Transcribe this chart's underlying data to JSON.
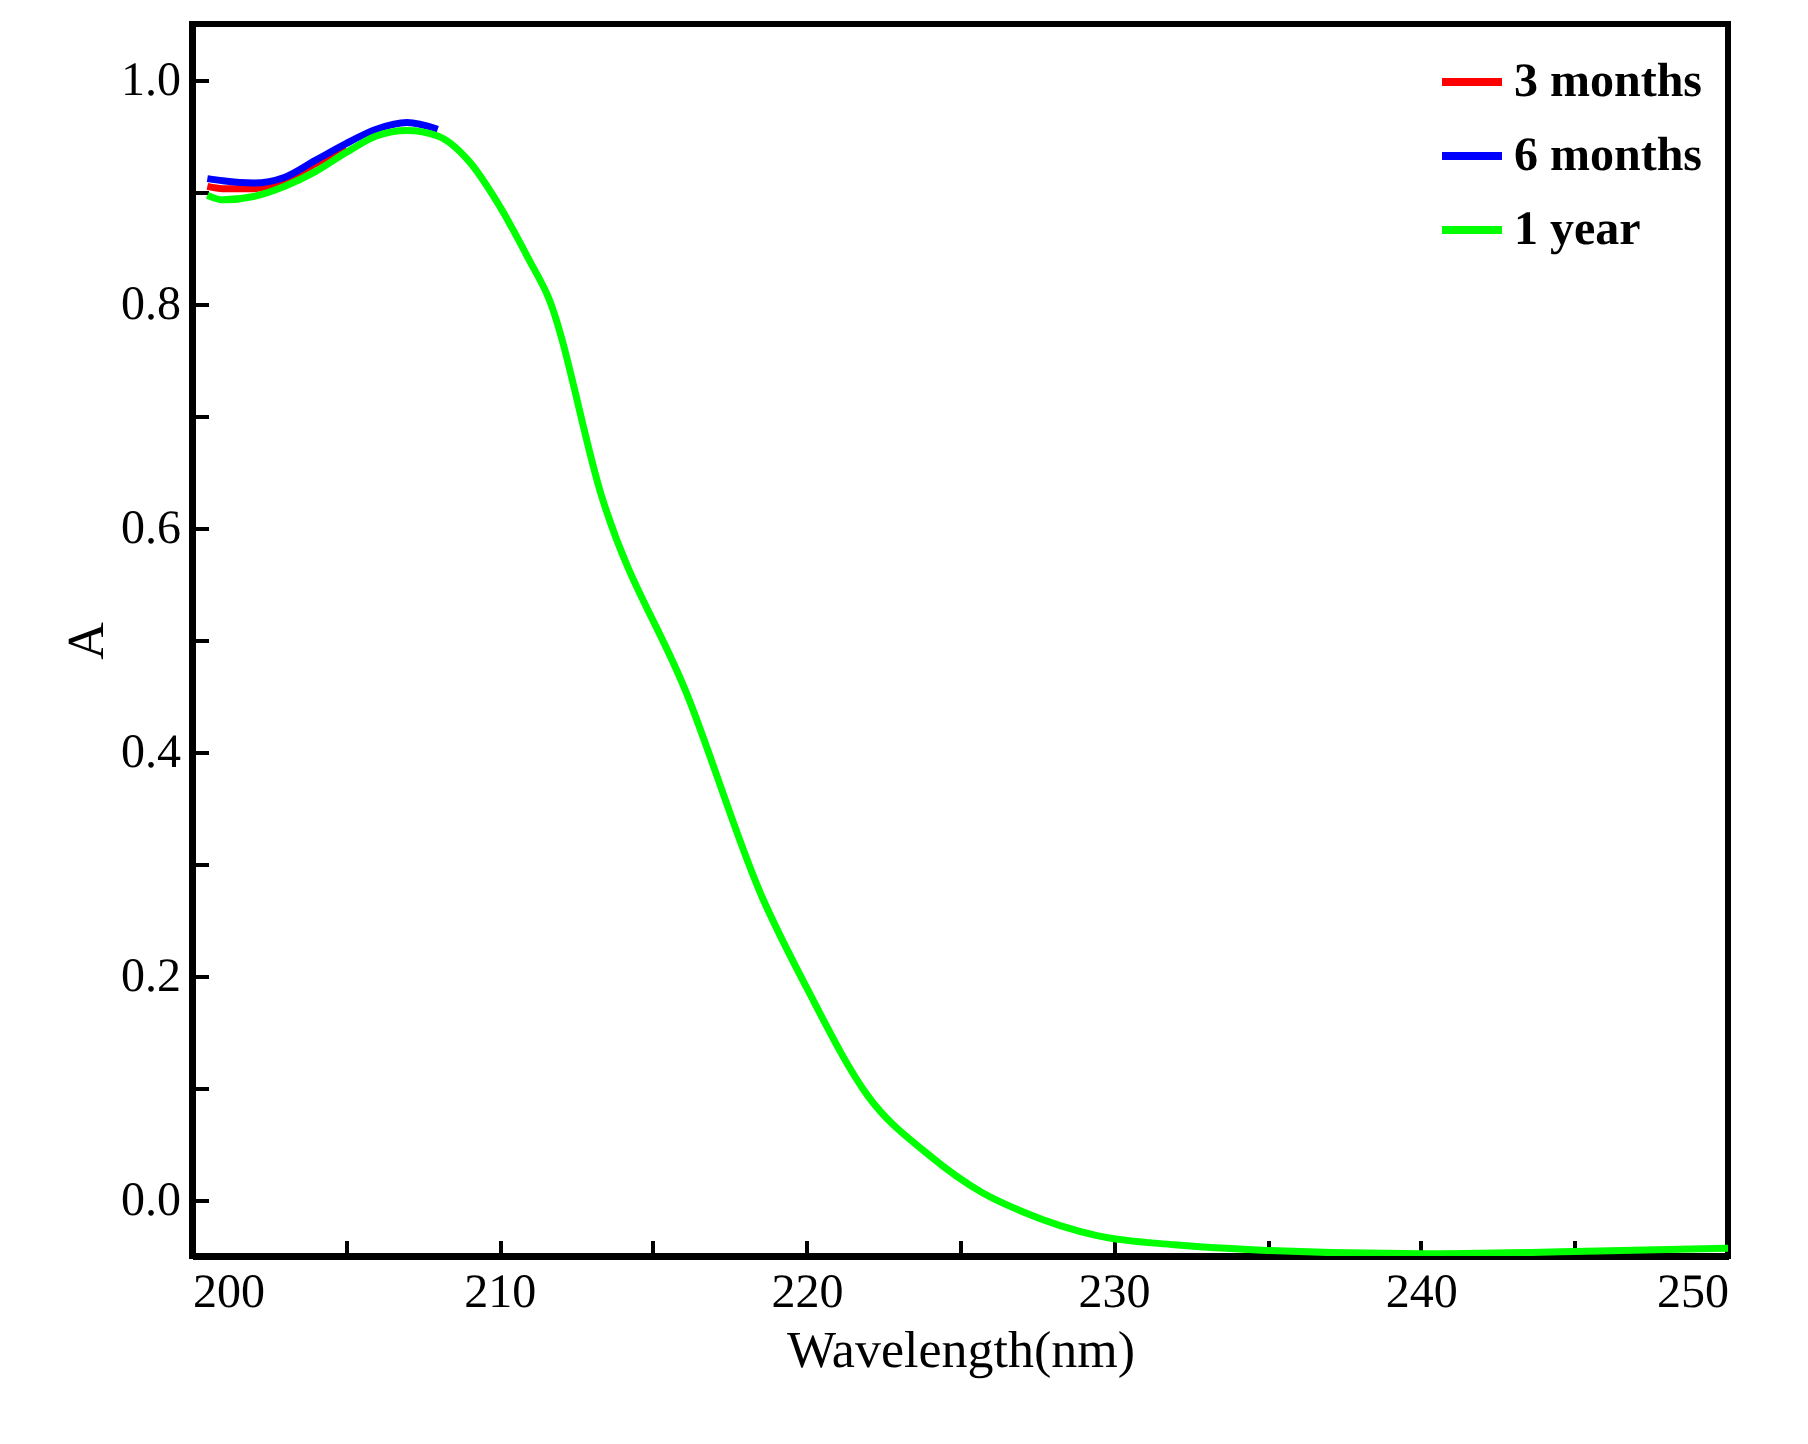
{
  "chart_data": {
    "type": "line",
    "xlabel": "Wavelength(nm)",
    "ylabel": "A",
    "x": [
      200.5,
      201,
      202,
      203,
      204,
      205,
      206,
      207,
      208,
      209,
      210,
      211,
      211.6,
      213.35,
      216.15,
      218.55,
      220,
      222,
      224,
      225.7,
      227,
      229.5,
      232,
      235,
      240,
      245,
      250
    ],
    "series": [
      {
        "name": "3 months",
        "color": "#ff0000",
        "values": [
          0.905,
          0.903,
          0.903,
          0.91,
          0.925,
          0.94,
          null,
          null,
          null,
          null,
          null,
          null,
          null,
          null,
          null,
          null,
          null,
          null,
          null,
          null,
          null,
          null,
          null,
          null,
          null,
          null,
          null
        ]
      },
      {
        "name": "6 months",
        "color": "#0000ff",
        "values": [
          0.912,
          0.91,
          0.908,
          0.913,
          0.928,
          0.943,
          0.956,
          0.962,
          0.956,
          null,
          null,
          null,
          null,
          null,
          null,
          null,
          null,
          null,
          null,
          null,
          null,
          null,
          null,
          null,
          null,
          null,
          null
        ]
      },
      {
        "name": "1 year",
        "color": "#00ff00",
        "values": [
          0.897,
          0.893,
          0.896,
          0.905,
          0.918,
          0.935,
          0.95,
          0.955,
          0.95,
          0.928,
          0.888,
          0.838,
          0.806,
          0.627,
          0.449,
          0.271,
          0.19,
          0.093,
          0.04,
          0.007,
          -0.01,
          -0.032,
          -0.04,
          -0.045,
          -0.048,
          -0.046,
          -0.043
        ]
      }
    ],
    "xlim": [
      200,
      250
    ],
    "xticks": [
      200,
      {
        "value": 205,
        "label": null
      },
      210,
      {
        "value": 215,
        "label": null
      },
      220,
      {
        "value": 225,
        "label": null
      },
      230,
      {
        "value": 235,
        "label": null
      },
      240,
      {
        "value": 245,
        "label": null
      },
      250
    ],
    "ylim": [
      -0.05,
      1.05
    ],
    "yticks": [
      {
        "value": 0,
        "label": "0.0"
      },
      {
        "value": 0.1,
        "label": null
      },
      0.2,
      {
        "value": 0.3,
        "label": null
      },
      0.4,
      {
        "value": 0.5,
        "label": null
      },
      0.6,
      {
        "value": 0.7,
        "label": null
      },
      0.8,
      {
        "value": 0.9,
        "label": null
      },
      {
        "value": 1,
        "label": "1.0"
      }
    ],
    "grid": false,
    "legend": "top right",
    "line_style": "solid",
    "marker": "none"
  }
}
